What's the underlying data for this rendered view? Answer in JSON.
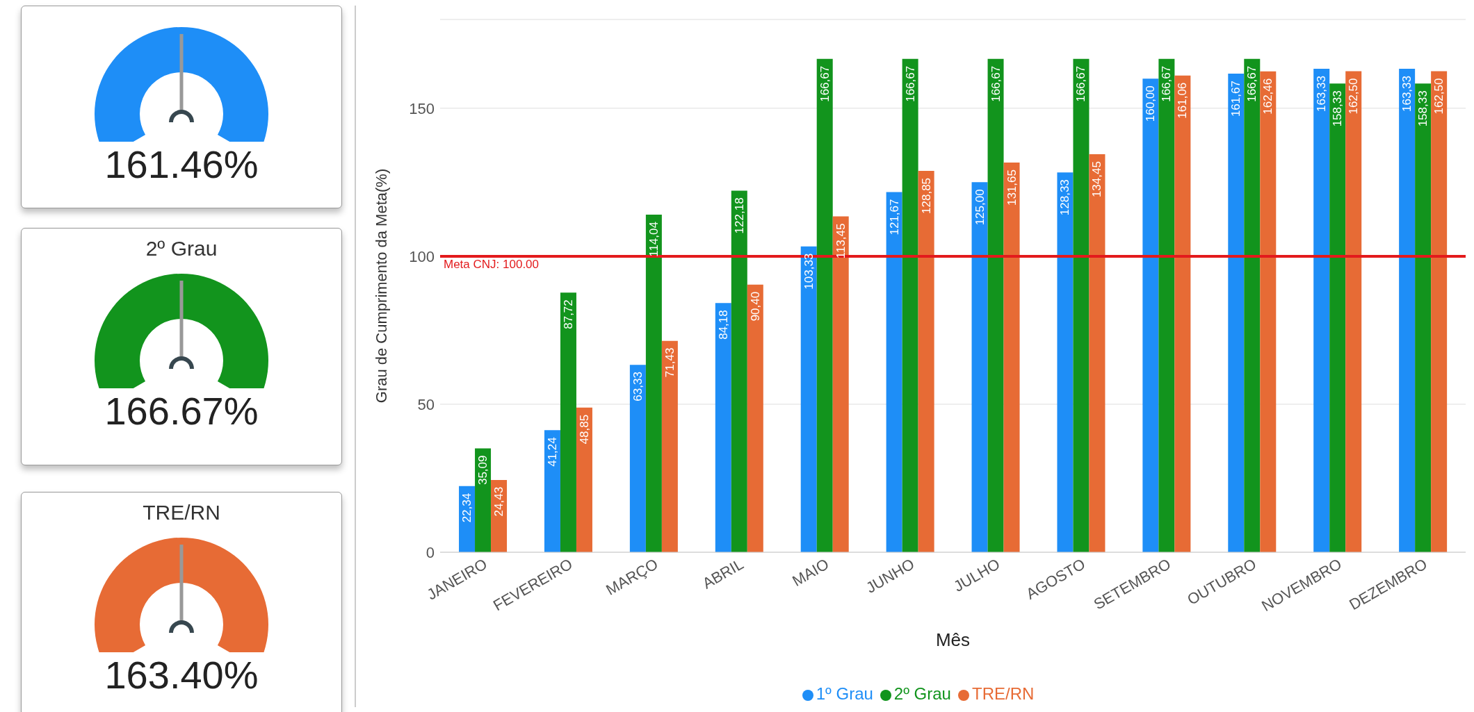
{
  "chart_data": [
    {
      "type": "other",
      "annotations": [
        "161.46%"
      ],
      "color": "#1e8ef7"
    },
    {
      "type": "other",
      "title": "2º Grau",
      "annotations": [
        "166.67%"
      ],
      "color": "#12941d"
    },
    {
      "type": "other",
      "title": "TRE/RN",
      "annotations": [
        "163.40%"
      ],
      "color": "#e76b35"
    },
    {
      "type": "bar",
      "xlabel": "Mês",
      "ylabel": "Grau de Cumprimento da Meta(%)",
      "categories": [
        "JANEIRO",
        "FEVEREIRO",
        "MARÇO",
        "ABRIL",
        "MAIO",
        "JUNHO",
        "JULHO",
        "AGOSTO",
        "SETEMBRO",
        "OUTUBRO",
        "NOVEMBRO",
        "DEZEMBRO"
      ],
      "series": [
        {
          "name": "1º Grau",
          "color": "#1e8ef7",
          "values": [
            22.34,
            41.24,
            63.33,
            84.18,
            103.33,
            121.67,
            125.0,
            128.33,
            160.0,
            161.67,
            163.33,
            163.33
          ],
          "value_labels": [
            "22,34",
            "41,24",
            "63,33",
            "84,18",
            "103,33",
            "121,67",
            "125,00",
            "128,33",
            "160,00",
            "161,67",
            "163,33",
            "163,33"
          ]
        },
        {
          "name": "2º Grau",
          "color": "#12941d",
          "values": [
            35.09,
            87.72,
            114.04,
            122.18,
            166.67,
            166.67,
            166.67,
            166.67,
            166.67,
            166.67,
            158.33,
            158.33
          ],
          "value_labels": [
            "35,09",
            "87,72",
            "114,04",
            "122,18",
            "166,67",
            "166,67",
            "166,67",
            "166,67",
            "166,67",
            "166,67",
            "158,33",
            "158,33"
          ]
        },
        {
          "name": "TRE/RN",
          "color": "#e76b35",
          "values": [
            24.43,
            48.85,
            71.43,
            90.4,
            113.45,
            128.85,
            131.65,
            134.45,
            161.06,
            162.46,
            162.5,
            162.5
          ],
          "value_labels": [
            "24,43",
            "48,85",
            "71,43",
            "90,40",
            "113,45",
            "128,85",
            "131,65",
            "134,45",
            "161,06",
            "162,46",
            "162,50",
            "162,50"
          ]
        }
      ],
      "ylim": [
        0,
        180
      ],
      "yticks": [
        0,
        50,
        100,
        150
      ],
      "grid": "y",
      "legend": "bottom",
      "ref_lines": [
        {
          "axis": "y",
          "value": 100,
          "label": "Meta CNJ: 100.00",
          "color": "#e31a1c"
        }
      ]
    }
  ]
}
